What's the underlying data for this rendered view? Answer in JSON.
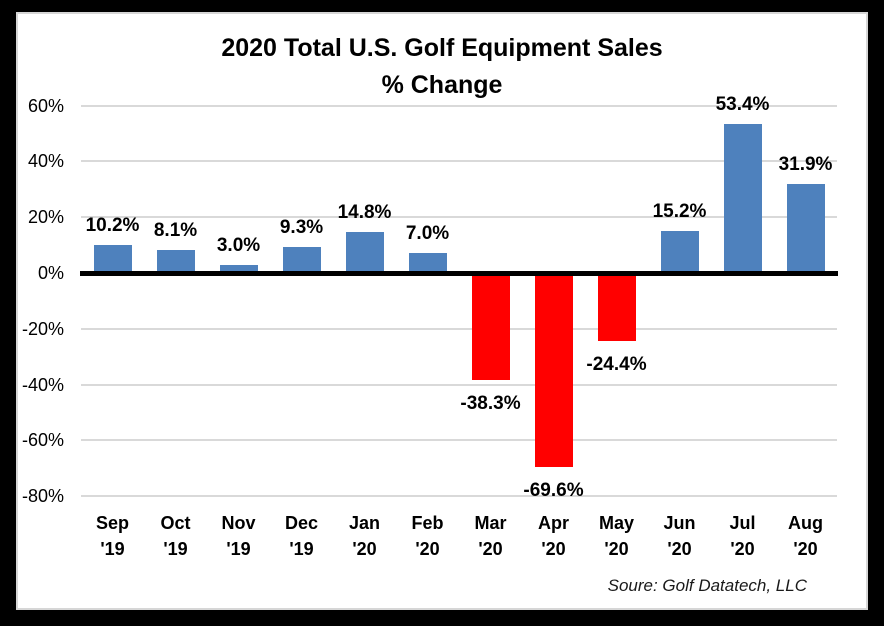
{
  "chart_data": {
    "type": "bar",
    "title": "2020 Total U.S. Golf Equipment Sales",
    "subtitle": "% Change",
    "xlabel": "",
    "ylabel": "",
    "ylim": [
      -80,
      60
    ],
    "grid": true,
    "legend": false,
    "positive_color": "#4E81BD",
    "negative_color": "#FF0000",
    "gridline_color": "#D9D9D9",
    "zero_axis_color": "#000000",
    "source": "Soure: Golf Datatech, LLC",
    "y_axis": [
      {
        "label": "60%",
        "value": 60
      },
      {
        "label": "40%",
        "value": 40
      },
      {
        "label": "20%",
        "value": 20
      },
      {
        "label": "0%",
        "value": 0
      },
      {
        "label": "-20%",
        "value": -20
      },
      {
        "label": "-40%",
        "value": -40
      },
      {
        "label": "-60%",
        "value": -60
      },
      {
        "label": "-80%",
        "value": -80
      }
    ],
    "months": [
      {
        "month": "Sep",
        "year": "'19",
        "value": 10.2,
        "value_label": "10.2%"
      },
      {
        "month": "Oct",
        "year": "'19",
        "value": 8.1,
        "value_label": "8.1%"
      },
      {
        "month": "Nov",
        "year": "'19",
        "value": 3.0,
        "value_label": "3.0%"
      },
      {
        "month": "Dec",
        "year": "'19",
        "value": 9.3,
        "value_label": "9.3%"
      },
      {
        "month": "Jan",
        "year": "'20",
        "value": 14.8,
        "value_label": "14.8%"
      },
      {
        "month": "Feb",
        "year": "'20",
        "value": 7.0,
        "value_label": "7.0%"
      },
      {
        "month": "Mar",
        "year": "'20",
        "value": -38.3,
        "value_label": "-38.3%"
      },
      {
        "month": "Apr",
        "year": "'20",
        "value": -69.6,
        "value_label": "-69.6%"
      },
      {
        "month": "May",
        "year": "'20",
        "value": -24.4,
        "value_label": "-24.4%"
      },
      {
        "month": "Jun",
        "year": "'20",
        "value": 15.2,
        "value_label": "15.2%"
      },
      {
        "month": "Jul",
        "year": "'20",
        "value": 53.4,
        "value_label": "53.4%"
      },
      {
        "month": "Aug",
        "year": "'20",
        "value": 31.9,
        "value_label": "31.9%"
      }
    ]
  }
}
